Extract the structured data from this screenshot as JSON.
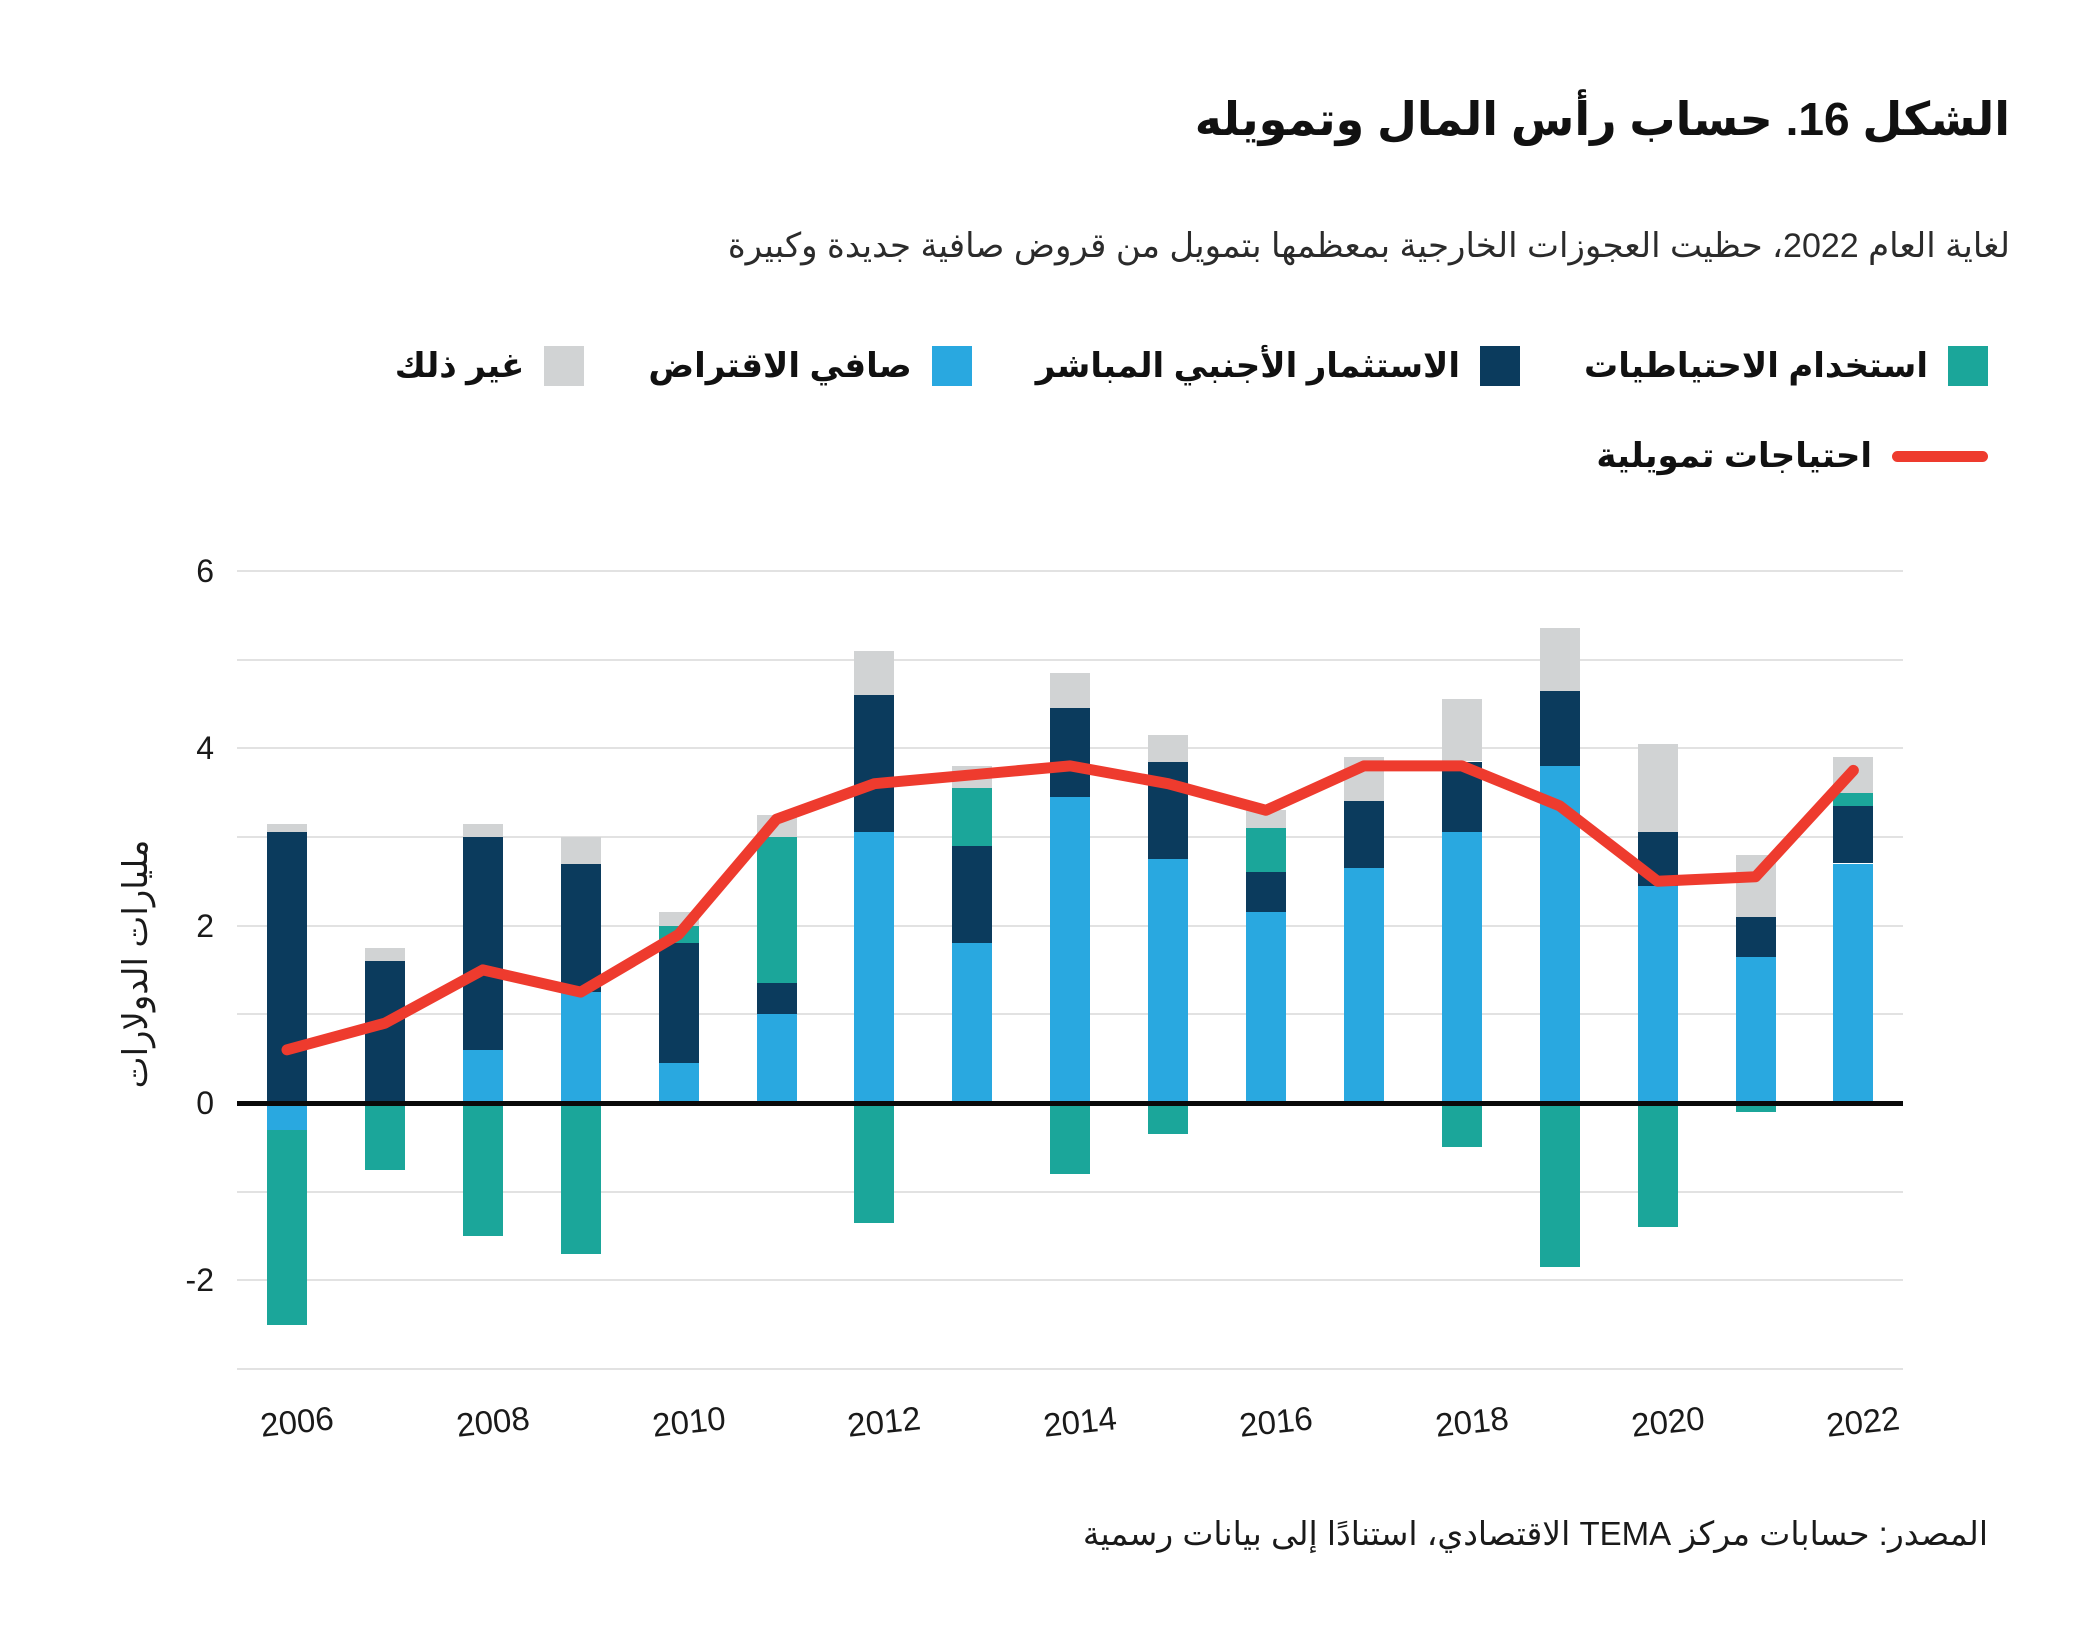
{
  "header": {
    "title": "الشكل 16. حساب رأس المال وتمويله",
    "subtitle": "لغاية العام 2022، حظيت العجوزات الخارجية بمعظمها بتمويل من قروض صافية جديدة وكبيرة"
  },
  "legend": {
    "items": [
      {
        "key": "reserves",
        "label": "استخدام الاحتياطيات",
        "color": "#1BA69A"
      },
      {
        "key": "fdi",
        "label": "الاستثمار الأجنبي المباشر",
        "color": "#0B3B5D"
      },
      {
        "key": "borrowing",
        "label": "صافي الاقتراض",
        "color": "#29A8E0"
      },
      {
        "key": "other",
        "label": "غير ذلك",
        "color": "#D1D3D4"
      }
    ],
    "line_item": {
      "key": "needs",
      "label": "احتياجات تمويلية",
      "color": "#EE3B2E"
    }
  },
  "axes": {
    "y_title": "مليارات الدولارات",
    "y_ticks": [
      {
        "label": "6",
        "value": 6
      },
      {
        "label": "4",
        "value": 4
      },
      {
        "label": "2",
        "value": 2
      },
      {
        "label": "0",
        "value": 0
      },
      {
        "label": "-2",
        "value": -2
      }
    ],
    "x_ticks": [
      2006,
      2008,
      2010,
      2012,
      2014,
      2016,
      2018,
      2020,
      2022
    ]
  },
  "footer": {
    "source": "المصدر: حسابات مركز TEMA الاقتصادي، استنادًا إلى بيانات رسمية"
  },
  "chart_data": {
    "type": "bar",
    "subtype": "stacked-bars-with-line",
    "title": "الشكل 16. حساب رأس المال وتمويله",
    "subtitle": "لغاية العام 2022، حظيت العجوزات الخارجية بمعظمها بتمويل من قروض صافية جديدة وكبيرة",
    "xlabel": "",
    "ylabel": "مليارات الدولارات",
    "ylim": [
      -3,
      6
    ],
    "grid": true,
    "legend_position": "top-right",
    "categories": [
      2006,
      2007,
      2008,
      2009,
      2010,
      2011,
      2012,
      2013,
      2014,
      2015,
      2016,
      2017,
      2018,
      2019,
      2020,
      2021,
      2022
    ],
    "series": [
      {
        "name": "صافي الاقتراض",
        "key": "borrowing",
        "color": "#29A8E0",
        "values": [
          -0.3,
          0,
          0.6,
          1.25,
          0.45,
          1.0,
          3.05,
          1.8,
          3.45,
          2.75,
          2.15,
          2.65,
          3.05,
          3.8,
          2.45,
          1.65,
          2.7
        ]
      },
      {
        "name": "الاستثمار الأجنبي المباشر",
        "key": "fdi",
        "color": "#0B3B5D",
        "values": [
          3.05,
          1.6,
          2.4,
          1.45,
          1.35,
          0.35,
          1.55,
          1.1,
          1.0,
          1.1,
          0.45,
          0.75,
          0.8,
          0.85,
          0.6,
          0.45,
          0.65
        ]
      },
      {
        "name": "استخدام الاحتياطيات",
        "key": "reserves",
        "color": "#1BA69A",
        "values": [
          -2.2,
          -0.75,
          -1.5,
          -1.7,
          0.2,
          1.65,
          -1.35,
          0.65,
          -0.8,
          -0.35,
          0.5,
          0,
          -0.5,
          -1.85,
          -1.4,
          -0.1,
          0.15
        ]
      },
      {
        "name": "غير ذلك",
        "key": "other",
        "color": "#D1D3D4",
        "values": [
          0.1,
          0.15,
          0.15,
          0.3,
          0.15,
          0.25,
          0.5,
          0.25,
          0.4,
          0.3,
          0.2,
          0.5,
          0.7,
          0.7,
          1.0,
          0.7,
          0.4
        ]
      }
    ],
    "line_series": {
      "name": "احتياجات تمويلية",
      "color": "#EE3B2E",
      "values": [
        0.6,
        0.9,
        1.5,
        1.25,
        1.9,
        3.2,
        3.6,
        3.7,
        3.8,
        3.6,
        3.3,
        3.8,
        3.8,
        3.35,
        2.5,
        2.55,
        3.75
      ]
    }
  }
}
